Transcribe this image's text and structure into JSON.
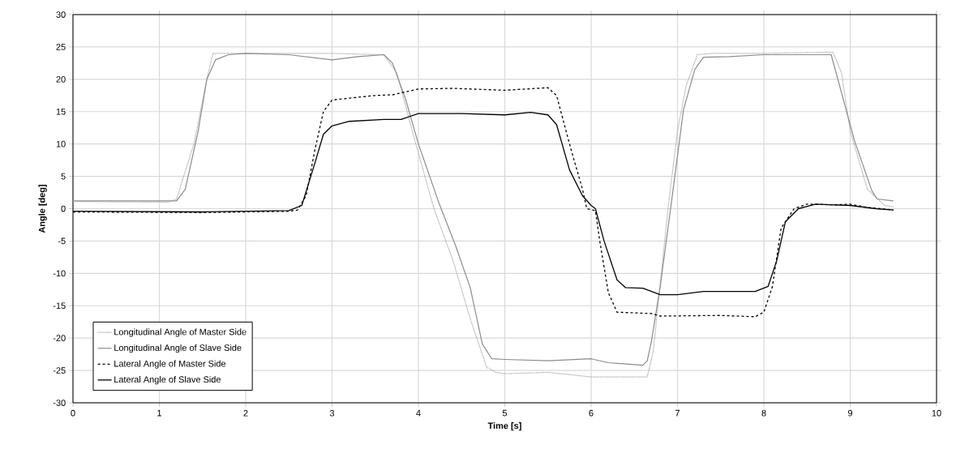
{
  "chart_data": {
    "type": "line",
    "xlabel": "Time [s]",
    "ylabel": "Angle [deg]",
    "xlim": [
      0,
      10
    ],
    "ylim": [
      -30,
      30
    ],
    "xticks": [
      0,
      1,
      2,
      3,
      4,
      5,
      6,
      7,
      8,
      9,
      10
    ],
    "yticks": [
      -30,
      -25,
      -20,
      -15,
      -10,
      -5,
      0,
      5,
      10,
      15,
      20,
      25,
      30
    ],
    "grid": true,
    "legend": "bottom left",
    "marker": "none",
    "series": [
      {
        "name": "Longitudinal Angle of Master Side",
        "color": "#a0a0a0",
        "line_style": "dotted",
        "x": [
          0,
          1.1,
          1.2,
          1.4,
          1.55,
          1.62,
          2,
          3,
          3.6,
          3.75,
          3.95,
          4.18,
          4.4,
          4.6,
          4.79,
          4.9,
          5,
          5.5,
          6,
          6.5,
          6.65,
          6.72,
          6.89,
          7.0,
          7.1,
          7.23,
          7.4,
          8,
          8.8,
          8.9,
          9.0,
          9.2,
          9.4,
          9.5
        ],
        "values": [
          1.1,
          1.0,
          1.5,
          10,
          20,
          24,
          24,
          24,
          23.8,
          21,
          11,
          0,
          -8,
          -17,
          -24.5,
          -25.3,
          -25.5,
          -25.3,
          -26,
          -26,
          -26,
          -22,
          0,
          12,
          19,
          23.8,
          24,
          24,
          24.2,
          21,
          12,
          3,
          0.5,
          0.3
        ]
      },
      {
        "name": "Longitudinal Angle of Slave Side",
        "color": "#8c8c8c",
        "line_style": "solid",
        "x": [
          0,
          1.2,
          1.3,
          1.45,
          1.55,
          1.65,
          1.8,
          2,
          2.5,
          3,
          3.3,
          3.6,
          3.7,
          3.85,
          4.0,
          4.24,
          4.43,
          4.6,
          4.74,
          4.85,
          5.0,
          5.5,
          6,
          6.2,
          6.6,
          6.65,
          6.7,
          6.8,
          6.92,
          7.07,
          7.2,
          7.3,
          7.6,
          8,
          8.78,
          9.05,
          9.25,
          9.31,
          9.5
        ],
        "values": [
          1.2,
          1.2,
          3,
          12,
          20,
          23,
          23.8,
          24,
          23.8,
          23,
          23.5,
          23.8,
          22.5,
          17,
          10,
          0.8,
          -5.7,
          -12.2,
          -20.9,
          -23.2,
          -23.3,
          -23.5,
          -23.2,
          -23.8,
          -24.2,
          -23.5,
          -20.4,
          -12,
          0,
          15.3,
          21.5,
          23.4,
          23.5,
          23.8,
          23.8,
          10.5,
          2.8,
          1.5,
          1.2
        ]
      },
      {
        "name": "Lateral Angle of Master Side",
        "color": "#000000",
        "line_style": "dashed",
        "x": [
          0,
          1.5,
          2.5,
          2.6,
          2.7,
          2.8,
          2.9,
          3,
          3.5,
          3.7,
          4,
          4.4,
          5,
          5.5,
          5.6,
          5.75,
          5.9,
          5.95,
          6.05,
          6.1,
          6.2,
          6.3,
          6.7,
          6.8,
          7.5,
          7.9,
          8.0,
          8.1,
          8.2,
          8.35,
          8.5,
          8.8,
          9.0,
          9.2,
          9.5
        ],
        "values": [
          -0.5,
          -0.6,
          -0.4,
          -0.2,
          2,
          9,
          15,
          16.8,
          17.5,
          17.6,
          18.5,
          18.6,
          18.3,
          18.7,
          17.5,
          10,
          3,
          0,
          -0.3,
          -5,
          -13,
          -16,
          -16.2,
          -16.6,
          -16.5,
          -16.7,
          -16,
          -12,
          -3,
          0,
          0.7,
          0.6,
          0.7,
          0.2,
          -0.2
        ]
      },
      {
        "name": "Lateral Angle of Slave Side",
        "color": "#000000",
        "line_style": "solid",
        "x": [
          0,
          1.5,
          2.5,
          2.65,
          2.8,
          2.9,
          3,
          3.2,
          3.6,
          3.8,
          4,
          4.5,
          5.0,
          5.3,
          5.5,
          5.6,
          5.75,
          5.9,
          6,
          6.05,
          6.15,
          6.3,
          6.4,
          6.6,
          6.8,
          7,
          7.3,
          7.9,
          8.05,
          8.15,
          8.25,
          8.4,
          8.6,
          9.0,
          9.3,
          9.5
        ],
        "values": [
          -0.4,
          -0.5,
          -0.3,
          0.5,
          7,
          11.5,
          12.8,
          13.5,
          13.8,
          13.8,
          14.7,
          14.7,
          14.5,
          14.9,
          14.5,
          13,
          6,
          2,
          0.5,
          0,
          -5,
          -11,
          -12.2,
          -12.3,
          -13.3,
          -13.3,
          -12.8,
          -12.8,
          -12,
          -8,
          -2,
          0,
          0.7,
          0.5,
          0,
          -0.2
        ]
      }
    ]
  }
}
